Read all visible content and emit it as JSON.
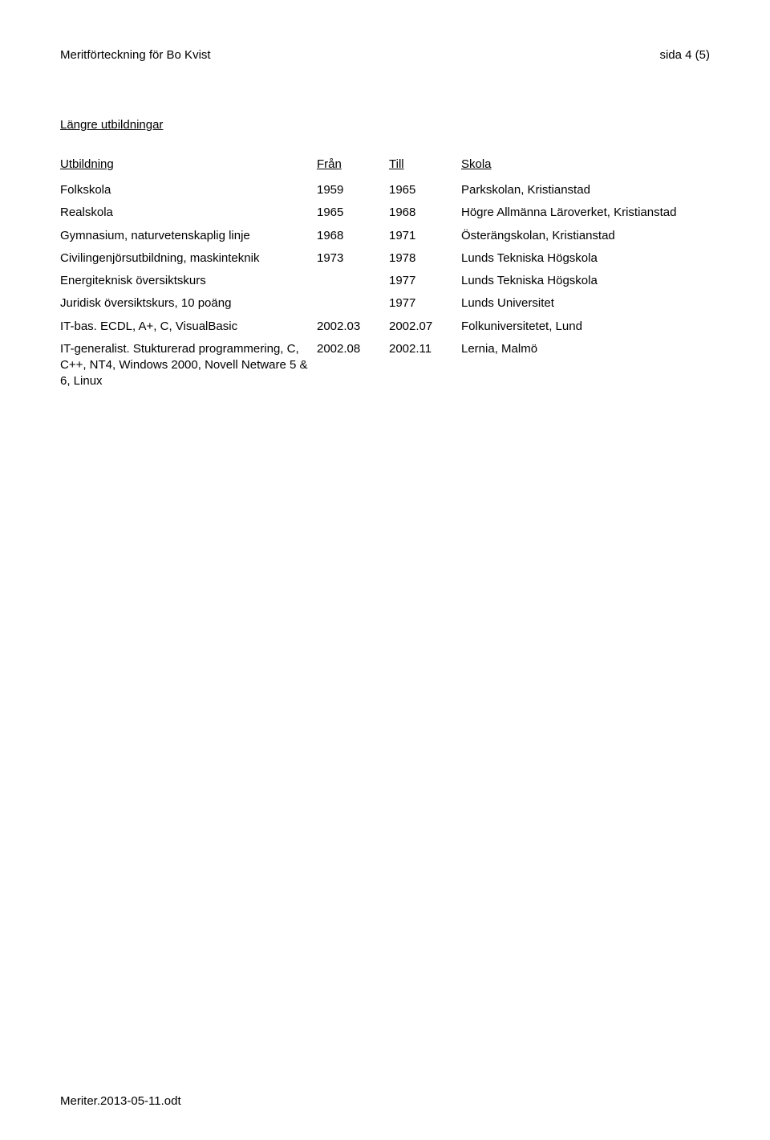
{
  "header": {
    "left": "Meritförteckning för Bo Kvist",
    "right": "sida 4 (5)"
  },
  "section_title": "Längre utbildningar",
  "table": {
    "columns": [
      "Utbildning",
      "Från",
      "Till",
      "Skola"
    ],
    "rows": [
      [
        "Folkskola",
        "1959",
        "1965",
        "Parkskolan, Kristianstad"
      ],
      [
        "Realskola",
        "1965",
        "1968",
        "Högre Allmänna Läroverket, Kristianstad"
      ],
      [
        "Gymnasium, naturvetenskaplig linje",
        "1968",
        "1971",
        "Österängskolan, Kristianstad"
      ],
      [
        "Civilingenjörsutbildning, maskinteknik",
        "1973",
        "1978",
        "Lunds Tekniska Högskola"
      ],
      [
        "Energiteknisk översiktskurs",
        "",
        "1977",
        "Lunds Tekniska Högskola"
      ],
      [
        "Juridisk översiktskurs, 10 poäng",
        "",
        "1977",
        "Lunds Universitet"
      ],
      [
        "IT-bas. ECDL, A+, C, VisualBasic",
        "2002.03",
        "2002.07",
        "Folkuniversitetet, Lund"
      ],
      [
        "IT-generalist. Stukturerad programmering, C, C++, NT4, Windows 2000, Novell Netware 5 & 6, Linux",
        "2002.08",
        "2002.11",
        "Lernia, Malmö"
      ]
    ]
  },
  "footer": "Meriter.2013-05-11.odt",
  "colors": {
    "background": "#ffffff",
    "text": "#000000"
  }
}
